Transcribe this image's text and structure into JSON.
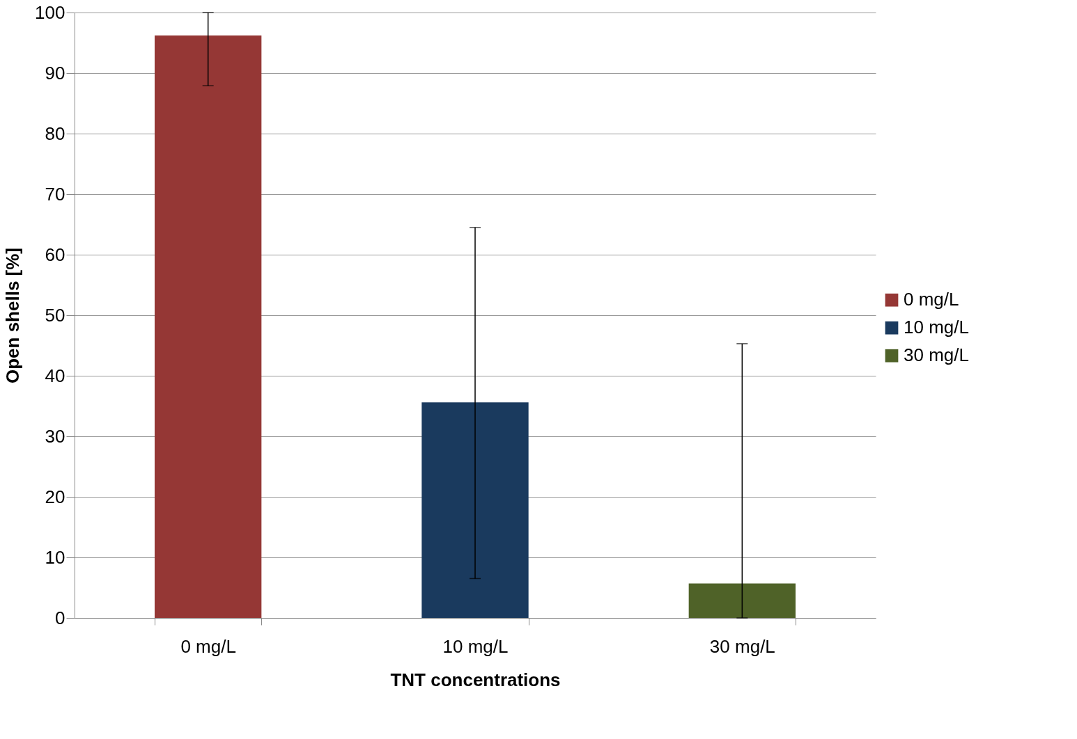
{
  "chart_data": {
    "type": "bar",
    "xlabel": "TNT concentrations",
    "ylabel": "Open shells [%]",
    "categories": [
      "0 mg/L",
      "10 mg/L",
      "30 mg/L"
    ],
    "series": [
      {
        "name": "0 mg/L",
        "color": "#953735",
        "values": [
          96.2,
          null,
          null
        ],
        "errors": [
          [
            87.9,
            100
          ],
          null,
          null
        ]
      },
      {
        "name": "10 mg/L",
        "color": "#1a3a5e",
        "values": [
          null,
          35.6,
          null
        ],
        "errors": [
          null,
          [
            6.5,
            64.5
          ],
          null
        ]
      },
      {
        "name": "30 mg/L",
        "color": "#4f6228",
        "values": [
          null,
          null,
          5.7
        ],
        "errors": [
          null,
          null,
          [
            0,
            45.3
          ]
        ]
      }
    ],
    "ylim": [
      0,
      100
    ],
    "yticks": [
      0,
      10,
      20,
      30,
      40,
      50,
      60,
      70,
      80,
      90,
      100
    ],
    "grid": "y",
    "legend": "right"
  }
}
